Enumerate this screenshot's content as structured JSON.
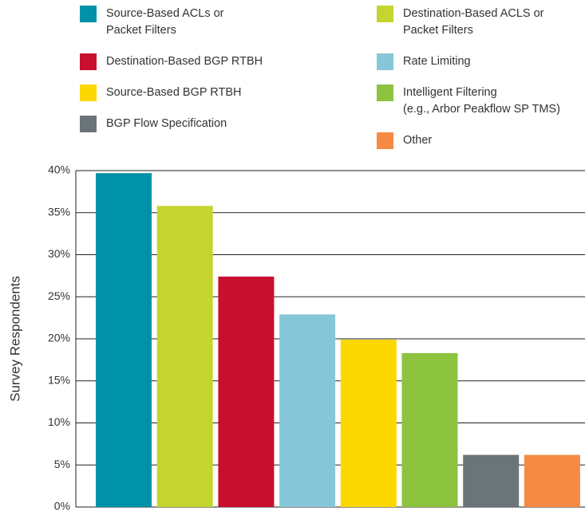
{
  "chart_data": {
    "type": "bar",
    "y_label": "Survey Respondents",
    "categories": [
      "Source-Based ACLs or\nPacket Filters",
      "Destination-Based ACLS or\nPacket Filters",
      "Destination-Based BGP RTBH",
      "Rate Limiting",
      "Source-Based BGP RTBH",
      "Intelligent Filtering\n(e.g., Arbor Peakflow SP TMS)",
      "BGP Flow Specification",
      "Other"
    ],
    "colors": [
      "#0092a8",
      "#c4d52f",
      "#c8102e",
      "#86c6d8",
      "#fdd800",
      "#8cc43f",
      "#6b7479",
      "#f58a45"
    ],
    "values": [
      39.7,
      35.8,
      27.4,
      22.9,
      19.9,
      18.3,
      6.2,
      6.2
    ],
    "ylim": [
      0,
      40
    ],
    "yticks": [
      {
        "value": 0,
        "label": "0%"
      },
      {
        "value": 5,
        "label": "5%"
      },
      {
        "value": 10,
        "label": "10%"
      },
      {
        "value": 15,
        "label": "15%"
      },
      {
        "value": 20,
        "label": "20%"
      },
      {
        "value": 25,
        "label": "25%"
      },
      {
        "value": 30,
        "label": "30%"
      },
      {
        "value": 35,
        "label": "35%"
      },
      {
        "value": 40,
        "label": "40%"
      }
    ],
    "grid": true
  }
}
